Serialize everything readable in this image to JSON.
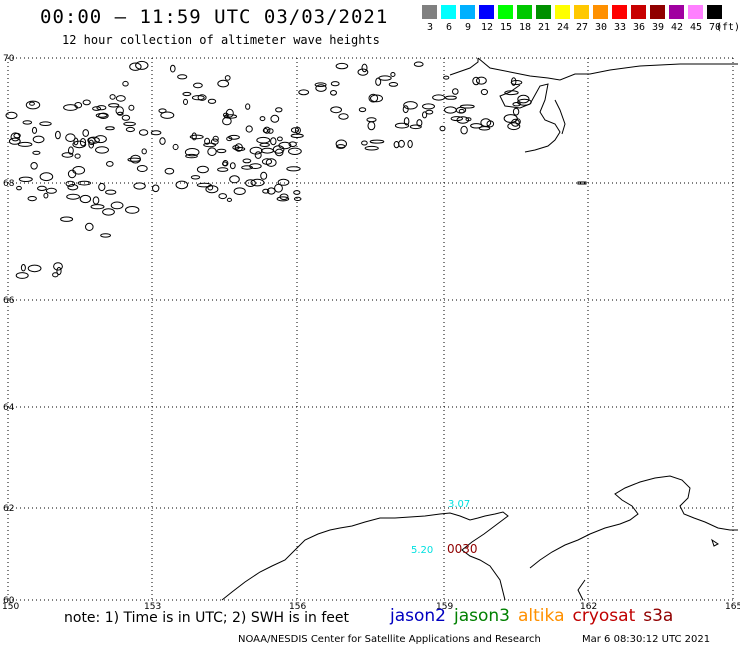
{
  "title": "00:00 – 11:59 UTC 03/03/2021",
  "subtitle": "12 hour collection of altimeter wave heights",
  "scale": {
    "unit": "(ft)",
    "levels": [
      {
        "label": "3",
        "color": "#808080"
      },
      {
        "label": "6",
        "color": "#00ffff"
      },
      {
        "label": "9",
        "color": "#00b0ff"
      },
      {
        "label": "12",
        "color": "#0000ff"
      },
      {
        "label": "15",
        "color": "#00ff00"
      },
      {
        "label": "18",
        "color": "#00c800"
      },
      {
        "label": "21",
        "color": "#009000"
      },
      {
        "label": "24",
        "color": "#ffff00"
      },
      {
        "label": "27",
        "color": "#ffc800"
      },
      {
        "label": "30",
        "color": "#ff9000"
      },
      {
        "label": "33",
        "color": "#ff0000"
      },
      {
        "label": "36",
        "color": "#c80000"
      },
      {
        "label": "39",
        "color": "#900000"
      },
      {
        "label": "42",
        "color": "#a000a0"
      },
      {
        "label": "45",
        "color": "#ff80ff"
      },
      {
        "label": "70",
        "color": "#000000"
      }
    ]
  },
  "axes": {
    "lat_labels": [
      "70",
      "68",
      "66",
      "64",
      "62",
      "60"
    ],
    "lon_labels": [
      "150",
      "153",
      "156",
      "159",
      "162",
      "165"
    ]
  },
  "observations": [
    {
      "text": "3.07",
      "color": "#00e0e0"
    },
    {
      "text": "5.20",
      "color": "#00e0e0"
    },
    {
      "text": "0030",
      "color": "#900000"
    }
  ],
  "note": "note: 1) Time is in UTC; 2) SWH is in feet",
  "legend": [
    {
      "name": "jason2",
      "color": "#0000c0"
    },
    {
      "name": "jason3",
      "color": "#008000"
    },
    {
      "name": "altika",
      "color": "#ff9000"
    },
    {
      "name": "cryosat",
      "color": "#c00000"
    },
    {
      "name": "s3a",
      "color": "#900000"
    }
  ],
  "credit": "NOAA/NESDIS Center for Satellite Applications and Research",
  "credit_timestamp": "Mar  6 08:30:12 UTC 2021"
}
